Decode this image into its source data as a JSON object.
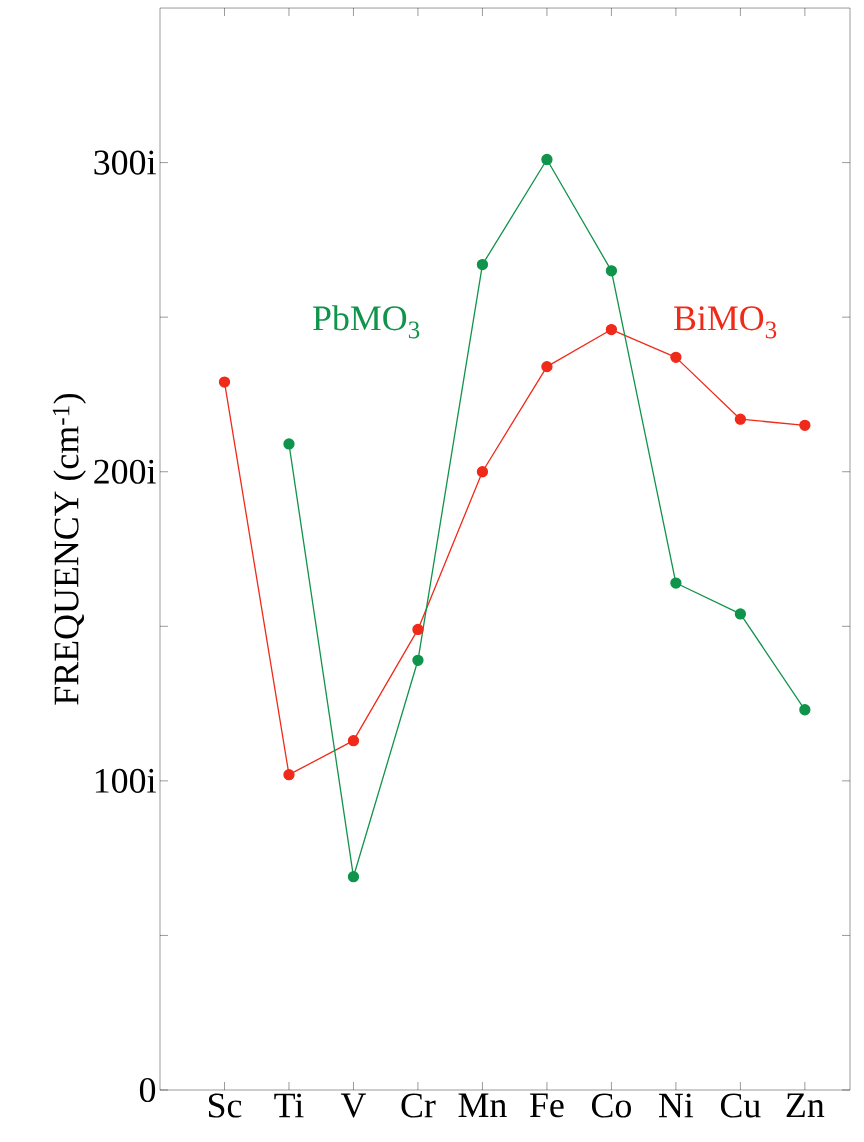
{
  "chart_data": {
    "type": "line",
    "ylabel": "FREQUENCY (cm$^{-1}$)",
    "categories": [
      "Sc",
      "Ti",
      "V",
      "Cr",
      "Mn",
      "Fe",
      "Co",
      "Ni",
      "Cu",
      "Zn"
    ],
    "series": [
      {
        "name": "BiMO$_{3}$",
        "color": "#f02a1a",
        "values": [
          229,
          102,
          113,
          149,
          200,
          234,
          246,
          237,
          217,
          215
        ]
      },
      {
        "name": "PbMO$_{3}$",
        "color": "#10934a",
        "values": [
          null,
          209,
          69,
          139,
          267,
          301,
          265,
          164,
          154,
          123
        ]
      }
    ],
    "ylim": [
      0,
      350
    ],
    "yticks": [
      0,
      {
        "value": 50,
        "label": null
      },
      {
        "value": 100,
        "label": "100i"
      },
      {
        "value": 150,
        "label": null
      },
      {
        "value": 200,
        "label": "200i"
      },
      {
        "value": 250,
        "label": null
      },
      {
        "value": 300,
        "label": "300i"
      }
    ],
    "marker": "circle",
    "line_style": "solid",
    "grid": false,
    "legend": false
  }
}
